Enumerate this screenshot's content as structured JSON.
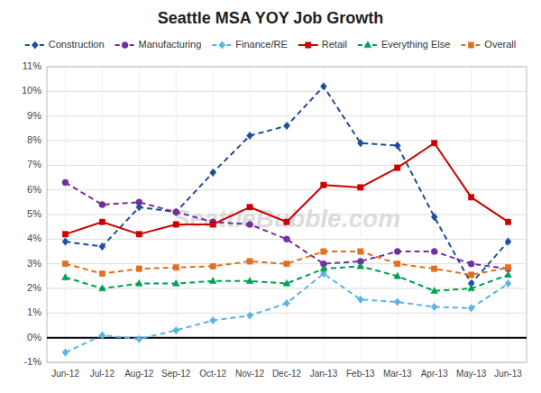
{
  "chart_data": {
    "type": "line",
    "title": "Seattle MSA YOY Job Growth",
    "categories": [
      "Jun-12",
      "Jul-12",
      "Aug-12",
      "Sep-12",
      "Oct-12",
      "Nov-12",
      "Dec-12",
      "Jan-13",
      "Feb-13",
      "Mar-13",
      "Apr-13",
      "May-13",
      "Jun-13"
    ],
    "series": [
      {
        "name": "Construction",
        "color": "#1f4e9a",
        "marker": "diamond",
        "line_style": "dashed",
        "values": [
          3.9,
          3.7,
          5.3,
          5.1,
          6.7,
          8.2,
          8.6,
          10.2,
          7.9,
          7.8,
          4.9,
          2.2,
          3.9
        ]
      },
      {
        "name": "Manufacturing",
        "color": "#7030a0",
        "marker": "circle",
        "line_style": "dashed",
        "values": [
          6.3,
          5.4,
          5.5,
          5.1,
          4.7,
          4.6,
          4.0,
          3.0,
          3.1,
          3.5,
          3.5,
          3.0,
          2.8
        ]
      },
      {
        "name": "Finance/RE",
        "color": "#5bb4e5",
        "marker": "diamond",
        "line_style": "dashed",
        "values": [
          -0.6,
          0.1,
          -0.05,
          0.3,
          0.7,
          0.9,
          1.4,
          2.6,
          1.55,
          1.45,
          1.25,
          1.2,
          2.2
        ]
      },
      {
        "name": "Retail",
        "color": "#cc0000",
        "marker": "square",
        "line_style": "solid",
        "values": [
          4.2,
          4.7,
          4.2,
          4.6,
          4.6,
          5.3,
          4.7,
          6.2,
          6.1,
          6.9,
          7.9,
          5.7,
          4.7
        ]
      },
      {
        "name": "Everything Else",
        "color": "#00a050",
        "marker": "triangle",
        "line_style": "dashed",
        "values": [
          2.45,
          2.0,
          2.2,
          2.2,
          2.3,
          2.3,
          2.2,
          2.8,
          2.9,
          2.5,
          1.9,
          2.0,
          2.55
        ]
      },
      {
        "name": "Overall",
        "color": "#e07020",
        "marker": "square",
        "line_style": "dashed",
        "values": [
          3.0,
          2.6,
          2.8,
          2.85,
          2.9,
          3.1,
          3.0,
          3.5,
          3.5,
          3.0,
          2.8,
          2.55,
          2.85
        ]
      }
    ],
    "ylim": [
      -1.0,
      11.0
    ],
    "yticks": [
      {
        "value": -1,
        "label": "-1%"
      },
      {
        "value": 0,
        "label": "0%"
      },
      {
        "value": 1,
        "label": "1%"
      },
      {
        "value": 2,
        "label": "2%"
      },
      {
        "value": 3,
        "label": "3%"
      },
      {
        "value": 4,
        "label": "4%"
      },
      {
        "value": 5,
        "label": "5%"
      },
      {
        "value": 6,
        "label": "6%"
      },
      {
        "value": 7,
        "label": "7%"
      },
      {
        "value": 8,
        "label": "8%"
      },
      {
        "value": 9,
        "label": "9%"
      },
      {
        "value": 10,
        "label": "10%"
      },
      {
        "value": 11,
        "label": "11%"
      }
    ],
    "grid": true,
    "legend": "top",
    "annotations": [
      "SeattleBubble.com"
    ]
  }
}
